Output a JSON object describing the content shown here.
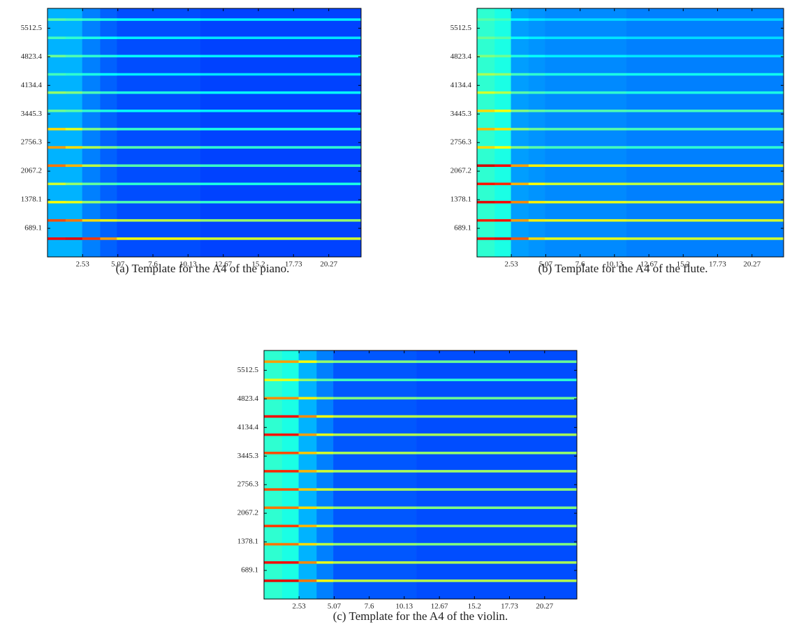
{
  "chart_data": [
    {
      "type": "heatmap",
      "title": "(a) Template for the A4 of the piano.",
      "colormap": "jet",
      "xbins": [
        0,
        1.3,
        2.5,
        3.8,
        5.0,
        11,
        22.6
      ],
      "xlim": [
        0,
        22.6
      ],
      "ylim": [
        0,
        5990
      ],
      "xticks": [
        2.53,
        5.07,
        7.6,
        10.13,
        12.67,
        15.2,
        17.73,
        20.27
      ],
      "yticks": [
        689.1,
        1378.1,
        2067.2,
        2756.3,
        3445.3,
        4134.4,
        4823.4,
        5512.5
      ],
      "rows": [
        {
          "ybins": [
            0,
            5990
          ],
          "values": [
            0.3,
            0.3,
            0.25,
            0.22,
            0.2,
            0.19
          ]
        },
        {
          "ybins": [
            410,
            470
          ],
          "values": [
            0.88,
            0.9,
            0.82,
            0.72,
            0.62,
            0.58
          ]
        },
        {
          "ybins": [
            850,
            910
          ],
          "values": [
            0.8,
            0.76,
            0.66,
            0.6,
            0.56,
            0.52
          ]
        },
        {
          "ybins": [
            1290,
            1350
          ],
          "values": [
            0.62,
            0.6,
            0.52,
            0.47,
            0.45,
            0.42
          ]
        },
        {
          "ybins": [
            1730,
            1790
          ],
          "values": [
            0.58,
            0.52,
            0.47,
            0.45,
            0.42,
            0.4
          ]
        },
        {
          "ybins": [
            2170,
            2230
          ],
          "values": [
            0.76,
            0.7,
            0.56,
            0.5,
            0.46,
            0.43
          ]
        },
        {
          "ybins": [
            2610,
            2670
          ],
          "values": [
            0.72,
            0.66,
            0.55,
            0.5,
            0.46,
            0.42
          ]
        },
        {
          "ybins": [
            3050,
            3110
          ],
          "values": [
            0.66,
            0.6,
            0.5,
            0.46,
            0.43,
            0.4
          ]
        },
        {
          "ybins": [
            3490,
            3550
          ],
          "values": [
            0.48,
            0.46,
            0.42,
            0.4,
            0.38,
            0.36
          ]
        },
        {
          "ybins": [
            3930,
            3990
          ],
          "values": [
            0.52,
            0.5,
            0.45,
            0.42,
            0.4,
            0.38
          ]
        },
        {
          "ybins": [
            4370,
            4430
          ],
          "values": [
            0.44,
            0.42,
            0.4,
            0.38,
            0.36,
            0.35
          ]
        },
        {
          "ybins": [
            4810,
            4870
          ],
          "values": [
            0.48,
            0.45,
            0.42,
            0.4,
            0.38,
            0.36
          ]
        },
        {
          "ybins": [
            5250,
            5310
          ],
          "values": [
            0.44,
            0.42,
            0.4,
            0.38,
            0.36,
            0.35
          ]
        },
        {
          "ybins": [
            5690,
            5750
          ],
          "values": [
            0.46,
            0.44,
            0.42,
            0.4,
            0.38,
            0.36
          ]
        }
      ]
    },
    {
      "type": "heatmap",
      "title": "(b) Template for the A4 of the flute.",
      "colormap": "jet",
      "xbins": [
        0,
        1.3,
        2.5,
        3.8,
        5.0,
        11,
        22.6
      ],
      "xlim": [
        0,
        22.6
      ],
      "ylim": [
        0,
        5990
      ],
      "xticks": [
        2.53,
        5.07,
        7.6,
        10.13,
        12.67,
        15.2,
        17.73,
        20.27
      ],
      "yticks": [
        689.1,
        1378.1,
        2067.2,
        2756.3,
        3445.3,
        4134.4,
        4823.4,
        5512.5
      ],
      "rows": [
        {
          "ybins": [
            0,
            5990
          ],
          "values": [
            0.42,
            0.4,
            0.28,
            0.27,
            0.26,
            0.25
          ]
        },
        {
          "ybins": [
            410,
            470
          ],
          "values": [
            0.88,
            0.9,
            0.78,
            0.66,
            0.6,
            0.58
          ]
        },
        {
          "ybins": [
            850,
            910
          ],
          "values": [
            0.85,
            0.86,
            0.72,
            0.64,
            0.6,
            0.58
          ]
        },
        {
          "ybins": [
            1290,
            1350
          ],
          "values": [
            0.9,
            0.88,
            0.74,
            0.64,
            0.6,
            0.58
          ]
        },
        {
          "ybins": [
            1730,
            1790
          ],
          "values": [
            0.86,
            0.84,
            0.7,
            0.62,
            0.58,
            0.56
          ]
        },
        {
          "ybins": [
            2170,
            2230
          ],
          "values": [
            0.92,
            0.88,
            0.72,
            0.64,
            0.6,
            0.6
          ]
        },
        {
          "ybins": [
            2610,
            2670
          ],
          "values": [
            0.66,
            0.62,
            0.5,
            0.46,
            0.44,
            0.42
          ]
        },
        {
          "ybins": [
            3050,
            3110
          ],
          "values": [
            0.7,
            0.66,
            0.52,
            0.48,
            0.46,
            0.44
          ]
        },
        {
          "ybins": [
            3490,
            3550
          ],
          "values": [
            0.66,
            0.62,
            0.5,
            0.47,
            0.45,
            0.44
          ]
        },
        {
          "ybins": [
            3930,
            3990
          ],
          "values": [
            0.58,
            0.55,
            0.46,
            0.44,
            0.42,
            0.4
          ]
        },
        {
          "ybins": [
            4370,
            4430
          ],
          "values": [
            0.54,
            0.52,
            0.44,
            0.42,
            0.4,
            0.39
          ]
        },
        {
          "ybins": [
            4810,
            4870
          ],
          "values": [
            0.5,
            0.48,
            0.4,
            0.38,
            0.36,
            0.35
          ]
        },
        {
          "ybins": [
            5250,
            5310
          ],
          "values": [
            0.48,
            0.46,
            0.38,
            0.36,
            0.35,
            0.34
          ]
        },
        {
          "ybins": [
            5690,
            5750
          ],
          "values": [
            0.46,
            0.44,
            0.37,
            0.35,
            0.34,
            0.33
          ]
        }
      ]
    },
    {
      "type": "heatmap",
      "title": "(c) Template for the A4 of the violin.",
      "colormap": "jet",
      "xbins": [
        0,
        1.3,
        2.5,
        3.8,
        5.0,
        11,
        22.6
      ],
      "xlim": [
        0,
        22.6
      ],
      "ylim": [
        0,
        5990
      ],
      "xticks": [
        2.53,
        5.07,
        7.6,
        10.13,
        12.67,
        15.2,
        17.73,
        20.27
      ],
      "yticks": [
        689.1,
        1378.1,
        2067.2,
        2756.3,
        3445.3,
        4134.4,
        4823.4,
        5512.5
      ],
      "rows": [
        {
          "ybins": [
            0,
            5990
          ],
          "values": [
            0.42,
            0.4,
            0.3,
            0.25,
            0.21,
            0.2
          ]
        },
        {
          "ybins": [
            410,
            470
          ],
          "values": [
            0.9,
            0.9,
            0.76,
            0.62,
            0.56,
            0.55
          ]
        },
        {
          "ybins": [
            850,
            910
          ],
          "values": [
            0.88,
            0.88,
            0.74,
            0.6,
            0.55,
            0.54
          ]
        },
        {
          "ybins": [
            1290,
            1350
          ],
          "values": [
            0.76,
            0.76,
            0.66,
            0.56,
            0.52,
            0.5
          ]
        },
        {
          "ybins": [
            1730,
            1790
          ],
          "values": [
            0.82,
            0.82,
            0.7,
            0.58,
            0.54,
            0.52
          ]
        },
        {
          "ybins": [
            2170,
            2230
          ],
          "values": [
            0.76,
            0.76,
            0.66,
            0.56,
            0.52,
            0.5
          ]
        },
        {
          "ybins": [
            2610,
            2670
          ],
          "values": [
            0.8,
            0.8,
            0.68,
            0.58,
            0.54,
            0.52
          ]
        },
        {
          "ybins": [
            3050,
            3110
          ],
          "values": [
            0.84,
            0.84,
            0.7,
            0.58,
            0.54,
            0.53
          ]
        },
        {
          "ybins": [
            3490,
            3550
          ],
          "values": [
            0.8,
            0.8,
            0.68,
            0.58,
            0.54,
            0.52
          ]
        },
        {
          "ybins": [
            3930,
            3990
          ],
          "values": [
            0.86,
            0.86,
            0.72,
            0.6,
            0.55,
            0.54
          ]
        },
        {
          "ybins": [
            4370,
            4430
          ],
          "values": [
            0.88,
            0.88,
            0.74,
            0.62,
            0.56,
            0.55
          ]
        },
        {
          "ybins": [
            4810,
            4870
          ],
          "values": [
            0.74,
            0.74,
            0.64,
            0.54,
            0.5,
            0.48
          ]
        },
        {
          "ybins": [
            5250,
            5310
          ],
          "values": [
            0.6,
            0.6,
            0.52,
            0.46,
            0.44,
            0.42
          ]
        },
        {
          "ybins": [
            5690,
            5750
          ],
          "values": [
            0.72,
            0.72,
            0.62,
            0.52,
            0.5,
            0.48
          ]
        }
      ]
    }
  ]
}
